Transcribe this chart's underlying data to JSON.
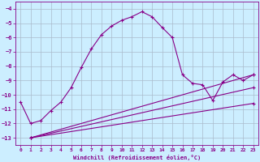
{
  "xlabel": "Windchill (Refroidissement éolien,°C)",
  "bg_color": "#cceeff",
  "grid_color": "#aabbcc",
  "line_color": "#880088",
  "xlim": [
    -0.5,
    23.5
  ],
  "ylim": [
    -13.5,
    -3.5
  ],
  "yticks": [
    -13,
    -12,
    -11,
    -10,
    -9,
    -8,
    -7,
    -6,
    -5,
    -4
  ],
  "xticks": [
    0,
    1,
    2,
    3,
    4,
    5,
    6,
    7,
    8,
    9,
    10,
    11,
    12,
    13,
    14,
    15,
    16,
    17,
    18,
    19,
    20,
    21,
    22,
    23
  ],
  "main_x": [
    0,
    1,
    2,
    3,
    4,
    5,
    6,
    7,
    8,
    9,
    10,
    11,
    12,
    13,
    14,
    15,
    16,
    17,
    18,
    19,
    20,
    21,
    22,
    23
  ],
  "main_y": [
    -10.5,
    -12.0,
    -11.8,
    -11.1,
    -10.5,
    -9.5,
    -8.1,
    -6.8,
    -5.8,
    -5.2,
    -4.8,
    -4.55,
    -4.2,
    -4.55,
    -5.3,
    -6.0,
    -8.6,
    -9.2,
    -9.3,
    -10.4,
    -9.1,
    -8.6,
    -9.0,
    -8.6
  ],
  "line1_x": [
    1,
    23
  ],
  "line1_y": [
    -13.0,
    -8.6
  ],
  "line2_x": [
    1,
    23
  ],
  "line2_y": [
    -13.0,
    -9.5
  ],
  "line3_x": [
    1,
    23
  ],
  "line3_y": [
    -13.0,
    -10.6
  ]
}
